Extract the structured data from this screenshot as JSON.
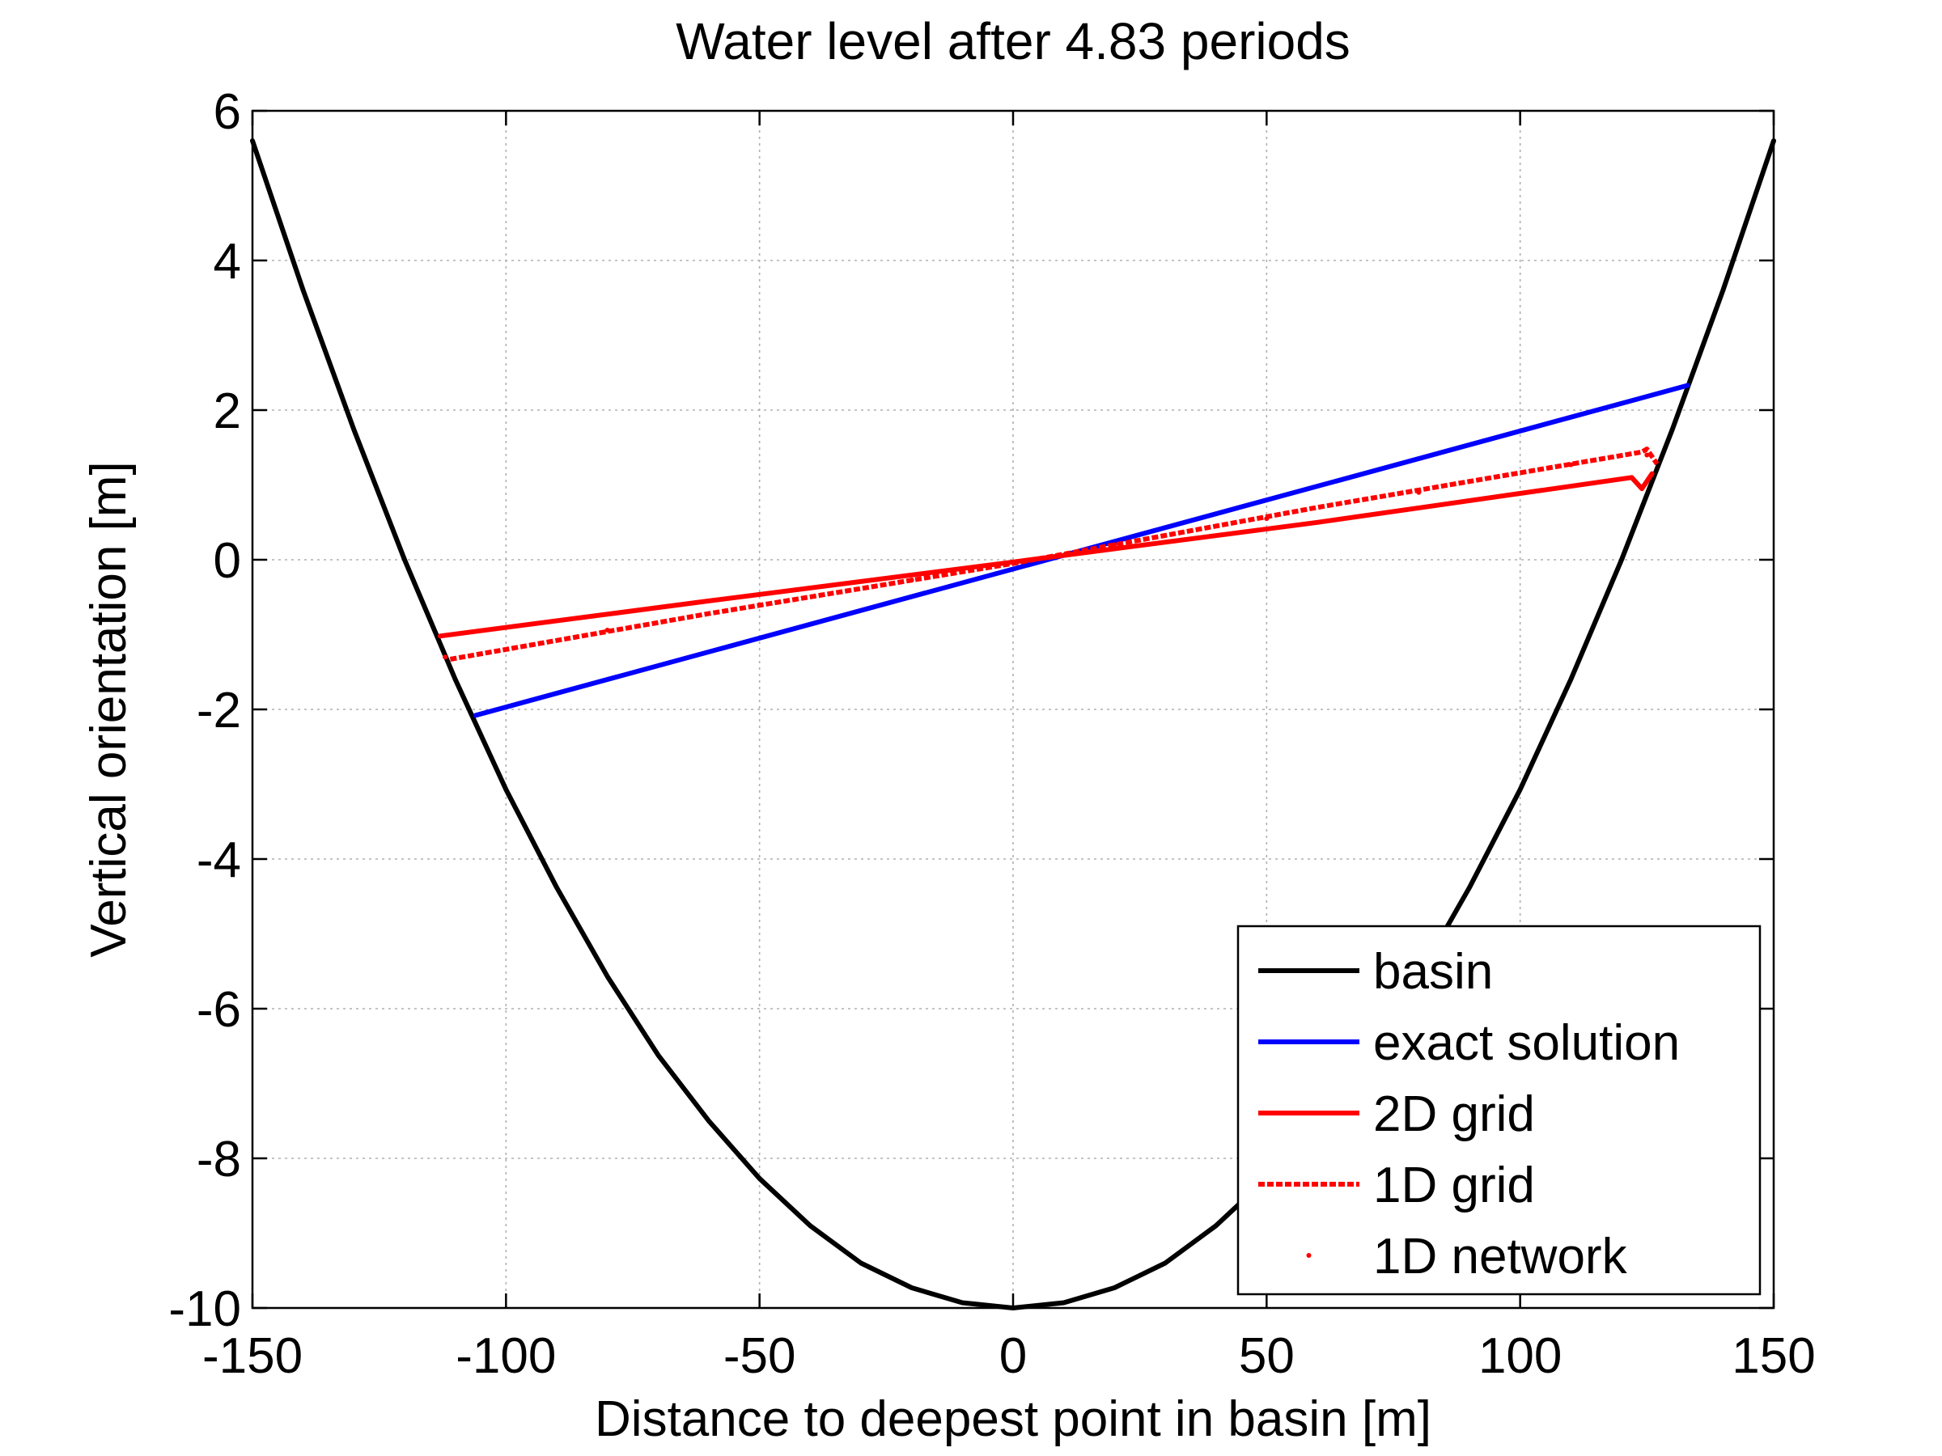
{
  "chart_data": {
    "type": "line",
    "title": "Water level after 4.83 periods",
    "xlabel": "Distance to deepest point in basin [m]",
    "ylabel": "Vertical orientation [m]",
    "xlim": [
      -150,
      150
    ],
    "ylim": [
      -10,
      6
    ],
    "xticks": [
      -150,
      -100,
      -50,
      0,
      50,
      100,
      150
    ],
    "yticks": [
      -10,
      -8,
      -6,
      -4,
      -2,
      0,
      2,
      4,
      6
    ],
    "grid": true,
    "legend_position": "bottom-right",
    "series": [
      {
        "name": "basin",
        "color": "#000000",
        "style": "solid",
        "x": [
          -150,
          -140,
          -130,
          -120,
          -110,
          -100,
          -90,
          -80,
          -70,
          -60,
          -50,
          -40,
          -30,
          -20,
          -10,
          0,
          10,
          20,
          30,
          40,
          50,
          60,
          70,
          80,
          90,
          100,
          110,
          120,
          130,
          140,
          150
        ],
        "y": [
          5.6,
          3.6,
          1.74,
          0.0,
          -1.6,
          -3.07,
          -4.38,
          -5.57,
          -6.62,
          -7.5,
          -8.27,
          -8.9,
          -9.4,
          -9.73,
          -9.93,
          -10.0,
          -9.93,
          -9.73,
          -9.4,
          -8.9,
          -8.27,
          -7.5,
          -6.62,
          -5.57,
          -4.38,
          -3.07,
          -1.6,
          0.0,
          1.74,
          3.6,
          5.6
        ]
      },
      {
        "name": "exact solution",
        "color": "#0000ff",
        "style": "solid",
        "x": [
          -106,
          133
        ],
        "y": [
          -2.08,
          2.33
        ]
      },
      {
        "name": "2D grid",
        "color": "#ff0000",
        "style": "solid",
        "x": [
          -113,
          -60,
          0,
          60,
          122,
          124,
          126
        ],
        "y": [
          -1.02,
          -0.55,
          -0.03,
          0.5,
          1.1,
          0.95,
          1.15
        ]
      },
      {
        "name": "1D grid",
        "color": "#ff0000",
        "style": "dashed",
        "x": [
          -111,
          -60,
          0,
          60,
          124,
          125,
          127
        ],
        "y": [
          -1.33,
          -0.72,
          -0.05,
          0.7,
          1.44,
          1.48,
          1.28
        ]
      },
      {
        "name": "1D network",
        "color": "#ff0000",
        "style": "dots",
        "x": [
          -112,
          -80,
          -50,
          -20,
          0,
          20,
          50,
          80,
          110,
          125
        ],
        "y": [
          -1.3,
          -0.94,
          -0.6,
          -0.27,
          -0.04,
          0.2,
          0.55,
          0.9,
          1.27,
          1.4
        ]
      }
    ]
  }
}
